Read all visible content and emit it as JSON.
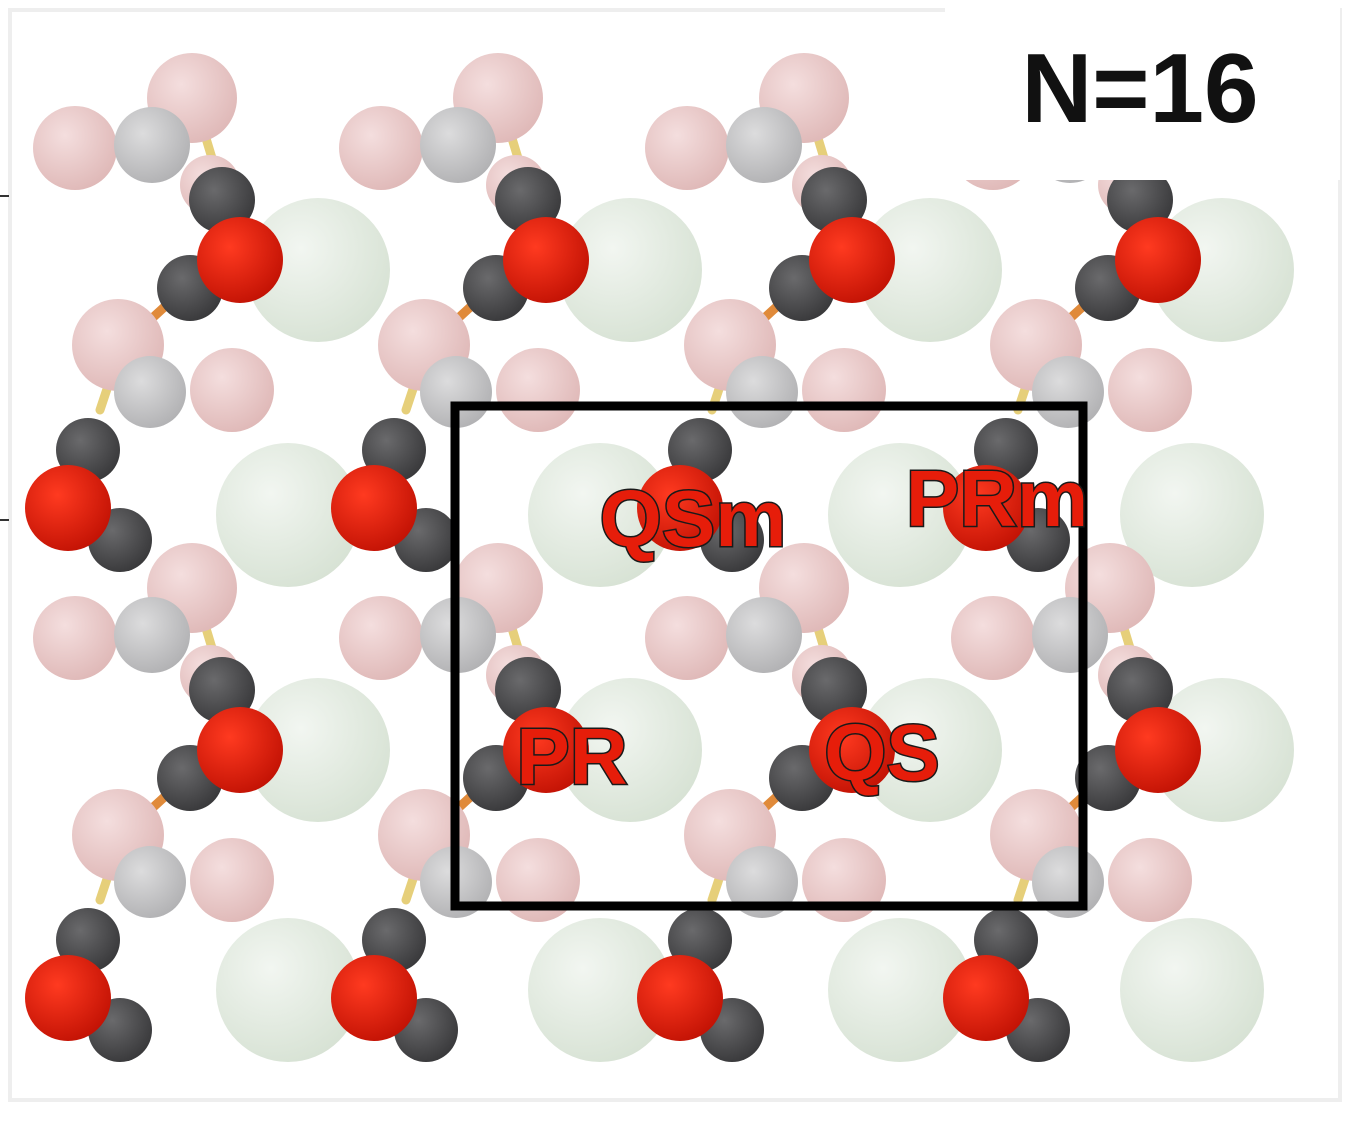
{
  "title": "N=16",
  "site_labels": {
    "qsm": "QSm",
    "prm": "PRm",
    "pr": "PR",
    "qs": "QS"
  },
  "colors": {
    "large_atom": "#e3ebe1",
    "pink_atom": "#e9c9c8",
    "grey_atom": "#c5c5c6",
    "dark_atom": "#4a4a4c",
    "red_atom": "#e01a08",
    "yellow_bond": "#e6cf7a",
    "orange_bond": "#e08a3a",
    "label_fill": "#e61d0a",
    "frame": "#000000"
  }
}
